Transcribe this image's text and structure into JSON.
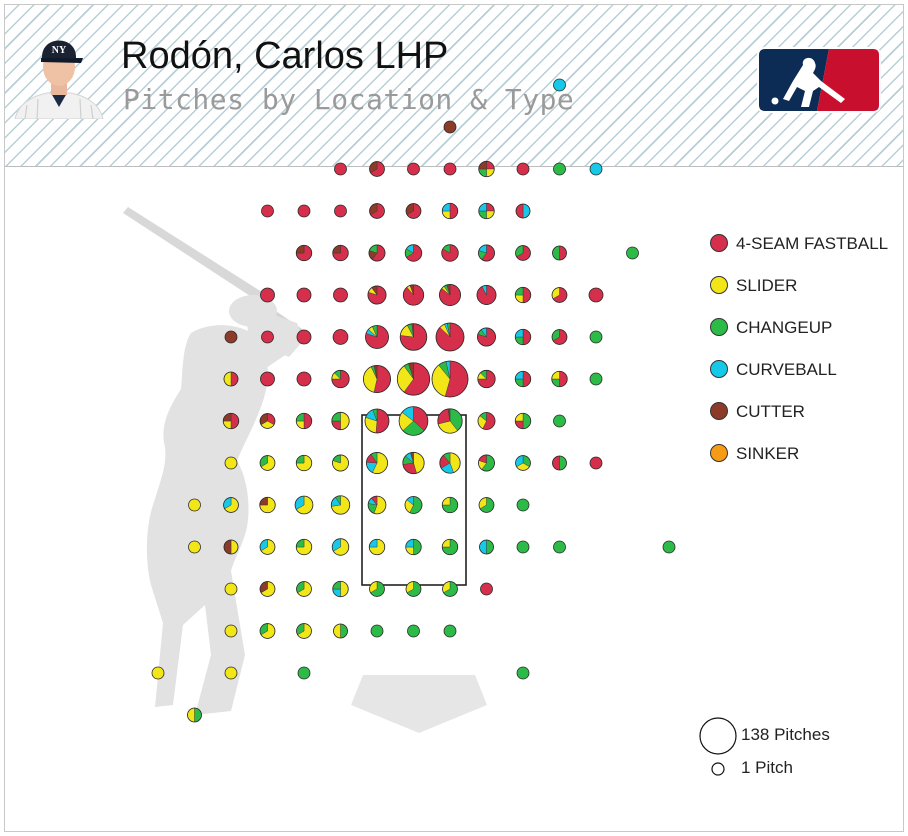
{
  "header": {
    "player_name": "Rodón, Carlos LHP",
    "subtitle": "Pitches by Location & Type",
    "cap_logo": "NY",
    "league_logo": "mlb-logo"
  },
  "colors": {
    "4-SEAM FASTBALL": "#d62f4b",
    "SLIDER": "#f2e619",
    "CHANGEUP": "#2dbb48",
    "CURVEBALL": "#17c9e8",
    "CUTTER": "#8c3b29",
    "SINKER": "#f59b16"
  },
  "size_legend": {
    "max_label": "138 Pitches",
    "min_label": "1 Pitch",
    "max_count": 138,
    "min_count": 1
  },
  "chart_data": {
    "type": "scatter",
    "title": "Pitches by Location & Type",
    "legend": [
      "4-SEAM FASTBALL",
      "SLIDER",
      "CHANGEUP",
      "CURVEBALL",
      "CUTTER",
      "SINKER"
    ],
    "legend_position": "right",
    "grid": false,
    "columns": [
      -6,
      -5,
      -4,
      -3,
      -2,
      -1,
      0,
      1,
      2,
      3,
      4,
      5,
      6,
      7,
      8,
      9
    ],
    "rows": [
      14,
      13,
      12,
      11,
      10,
      9,
      8,
      7,
      6,
      5,
      4,
      3,
      2,
      1,
      0,
      -1
    ],
    "strike_zone": {
      "col_min": -1.5,
      "col_max": 1.5,
      "row_min": 5.5,
      "row_max": 9.5
    },
    "pitches": [
      {
        "col": 4,
        "row": 14,
        "mix": {
          "CURVEBALL": 1
        }
      },
      {
        "col": 1,
        "row": 13,
        "mix": {
          "CUTTER": 1
        }
      },
      {
        "col": -2,
        "row": 12,
        "mix": {
          "4-SEAM FASTBALL": 1
        }
      },
      {
        "col": -1,
        "row": 12,
        "mix": {
          "4-SEAM FASTBALL": 2,
          "CUTTER": 1
        }
      },
      {
        "col": 0,
        "row": 12,
        "mix": {
          "4-SEAM FASTBALL": 1
        }
      },
      {
        "col": 1,
        "row": 12,
        "mix": {
          "4-SEAM FASTBALL": 1
        }
      },
      {
        "col": 2,
        "row": 12,
        "mix": {
          "4-SEAM FASTBALL": 1,
          "SLIDER": 1,
          "CHANGEUP": 1,
          "CUTTER": 1
        }
      },
      {
        "col": 3,
        "row": 12,
        "mix": {
          "4-SEAM FASTBALL": 1
        }
      },
      {
        "col": 4,
        "row": 12,
        "mix": {
          "CHANGEUP": 1
        }
      },
      {
        "col": 5,
        "row": 12,
        "mix": {
          "CURVEBALL": 1
        }
      },
      {
        "col": -4,
        "row": 11,
        "mix": {
          "4-SEAM FASTBALL": 1
        }
      },
      {
        "col": -3,
        "row": 11,
        "mix": {
          "4-SEAM FASTBALL": 1
        }
      },
      {
        "col": -2,
        "row": 11,
        "mix": {
          "4-SEAM FASTBALL": 1
        }
      },
      {
        "col": -1,
        "row": 11,
        "mix": {
          "4-SEAM FASTBALL": 2,
          "CUTTER": 1
        }
      },
      {
        "col": 0,
        "row": 11,
        "mix": {
          "4-SEAM FASTBALL": 2,
          "CUTTER": 1
        }
      },
      {
        "col": 1,
        "row": 11,
        "mix": {
          "4-SEAM FASTBALL": 2,
          "SLIDER": 1,
          "CURVEBALL": 1
        }
      },
      {
        "col": 2,
        "row": 11,
        "mix": {
          "4-SEAM FASTBALL": 1,
          "SLIDER": 1,
          "CHANGEUP": 1,
          "CURVEBALL": 1
        }
      },
      {
        "col": 3,
        "row": 11,
        "mix": {
          "CURVEBALL": 1,
          "4-SEAM FASTBALL": 1
        }
      },
      {
        "col": -3,
        "row": 10,
        "mix": {
          "4-SEAM FASTBALL": 3,
          "CUTTER": 1
        }
      },
      {
        "col": -2,
        "row": 10,
        "mix": {
          "4-SEAM FASTBALL": 3,
          "CUTTER": 1
        }
      },
      {
        "col": -1,
        "row": 10,
        "mix": {
          "4-SEAM FASTBALL": 3,
          "CUTTER": 1,
          "CHANGEUP": 1
        }
      },
      {
        "col": 0,
        "row": 10,
        "mix": {
          "4-SEAM FASTBALL": 4,
          "CHANGEUP": 1,
          "CURVEBALL": 1
        }
      },
      {
        "col": 1,
        "row": 10,
        "mix": {
          "4-SEAM FASTBALL": 5,
          "CHANGEUP": 1
        }
      },
      {
        "col": 2,
        "row": 10,
        "mix": {
          "4-SEAM FASTBALL": 3,
          "CHANGEUP": 1,
          "CURVEBALL": 1
        }
      },
      {
        "col": 3,
        "row": 10,
        "mix": {
          "4-SEAM FASTBALL": 2,
          "CHANGEUP": 1
        }
      },
      {
        "col": 4,
        "row": 10,
        "mix": {
          "4-SEAM FASTBALL": 1,
          "CHANGEUP": 1
        }
      },
      {
        "col": 6,
        "row": 10,
        "mix": {
          "CHANGEUP": 1
        }
      },
      {
        "col": -4,
        "row": 9,
        "mix": {
          "4-SEAM FASTBALL": 2
        }
      },
      {
        "col": -3,
        "row": 9,
        "mix": {
          "4-SEAM FASTBALL": 2
        }
      },
      {
        "col": -2,
        "row": 9,
        "mix": {
          "4-SEAM FASTBALL": 2
        }
      },
      {
        "col": -1,
        "row": 9,
        "mix": {
          "4-SEAM FASTBALL": 8,
          "SLIDER": 1,
          "CUTTER": 1
        }
      },
      {
        "col": 0,
        "row": 9,
        "mix": {
          "4-SEAM FASTBALL": 16,
          "SLIDER": 1,
          "CUTTER": 1
        }
      },
      {
        "col": 1,
        "row": 9,
        "mix": {
          "4-SEAM FASTBALL": 18,
          "SLIDER": 1,
          "CHANGEUP": 1,
          "CUTTER": 1
        }
      },
      {
        "col": 2,
        "row": 9,
        "mix": {
          "4-SEAM FASTBALL": 12,
          "CURVEBALL": 1
        }
      },
      {
        "col": 3,
        "row": 9,
        "mix": {
          "4-SEAM FASTBALL": 2,
          "SLIDER": 1,
          "CHANGEUP": 1
        }
      },
      {
        "col": 4,
        "row": 9,
        "mix": {
          "4-SEAM FASTBALL": 2,
          "SLIDER": 1
        }
      },
      {
        "col": 5,
        "row": 9,
        "mix": {
          "4-SEAM FASTBALL": 2
        }
      },
      {
        "col": -5,
        "row": 8,
        "mix": {
          "CUTTER": 1
        }
      },
      {
        "col": -4,
        "row": 8,
        "mix": {
          "4-SEAM FASTBALL": 1
        }
      },
      {
        "col": -3,
        "row": 8,
        "mix": {
          "4-SEAM FASTBALL": 2
        }
      },
      {
        "col": -2,
        "row": 8,
        "mix": {
          "4-SEAM FASTBALL": 3
        }
      },
      {
        "col": -1,
        "row": 8,
        "mix": {
          "4-SEAM FASTBALL": 24,
          "CURVEBALL": 2,
          "SLIDER": 2,
          "CHANGEUP": 2
        }
      },
      {
        "col": 0,
        "row": 8,
        "mix": {
          "4-SEAM FASTBALL": 40,
          "SLIDER": 8,
          "CHANGEUP": 3,
          "CUTTER": 1
        }
      },
      {
        "col": 1,
        "row": 8,
        "mix": {
          "4-SEAM FASTBALL": 54,
          "SLIDER": 4,
          "CURVEBALL": 2,
          "CHANGEUP": 2
        }
      },
      {
        "col": 2,
        "row": 8,
        "mix": {
          "4-SEAM FASTBALL": 8,
          "CHANGEUP": 1,
          "CURVEBALL": 1
        }
      },
      {
        "col": 3,
        "row": 8,
        "mix": {
          "4-SEAM FASTBALL": 2,
          "CHANGEUP": 1,
          "CURVEBALL": 1
        }
      },
      {
        "col": 4,
        "row": 8,
        "mix": {
          "4-SEAM FASTBALL": 2,
          "CHANGEUP": 1
        }
      },
      {
        "col": 5,
        "row": 8,
        "mix": {
          "CHANGEUP": 1
        }
      },
      {
        "col": -5,
        "row": 7,
        "mix": {
          "4-SEAM FASTBALL": 1,
          "SLIDER": 1
        }
      },
      {
        "col": -4,
        "row": 7,
        "mix": {
          "4-SEAM FASTBALL": 2
        }
      },
      {
        "col": -3,
        "row": 7,
        "mix": {
          "4-SEAM FASTBALL": 2
        }
      },
      {
        "col": -2,
        "row": 7,
        "mix": {
          "4-SEAM FASTBALL": 6,
          "SLIDER": 1,
          "CHANGEUP": 1
        }
      },
      {
        "col": -1,
        "row": 7,
        "mix": {
          "4-SEAM FASTBALL": 30,
          "SLIDER": 22,
          "CHANGEUP": 2,
          "CUTTER": 2
        }
      },
      {
        "col": 0,
        "row": 7,
        "mix": {
          "4-SEAM FASTBALL": 60,
          "SLIDER": 30,
          "CHANGEUP": 5,
          "CUTTER": 5
        }
      },
      {
        "col": 1,
        "row": 7,
        "mix": {
          "4-SEAM FASTBALL": 75,
          "SLIDER": 48,
          "CHANGEUP": 10,
          "CURVEBALL": 5
        }
      },
      {
        "col": 2,
        "row": 7,
        "mix": {
          "4-SEAM FASTBALL": 6,
          "SLIDER": 1,
          "CHANGEUP": 1
        }
      },
      {
        "col": 3,
        "row": 7,
        "mix": {
          "4-SEAM FASTBALL": 2,
          "CHANGEUP": 1,
          "CURVEBALL": 1
        }
      },
      {
        "col": 4,
        "row": 7,
        "mix": {
          "4-SEAM FASTBALL": 2,
          "CHANGEUP": 1,
          "SLIDER": 1
        }
      },
      {
        "col": 5,
        "row": 7,
        "mix": {
          "CHANGEUP": 1
        }
      },
      {
        "col": -5,
        "row": 6,
        "mix": {
          "4-SEAM FASTBALL": 2,
          "SLIDER": 1,
          "CUTTER": 1
        }
      },
      {
        "col": -4,
        "row": 6,
        "mix": {
          "4-SEAM FASTBALL": 1,
          "SLIDER": 1,
          "CUTTER": 1
        }
      },
      {
        "col": -3,
        "row": 6,
        "mix": {
          "4-SEAM FASTBALL": 2,
          "SLIDER": 1,
          "CHANGEUP": 1
        }
      },
      {
        "col": -2,
        "row": 6,
        "mix": {
          "SLIDER": 4,
          "4-SEAM FASTBALL": 2,
          "CHANGEUP": 2
        }
      },
      {
        "col": -1,
        "row": 6,
        "mix": {
          "4-SEAM FASTBALL": 18,
          "SLIDER": 10,
          "CURVEBALL": 5,
          "CHANGEUP": 2
        }
      },
      {
        "col": 0,
        "row": 6,
        "mix": {
          "4-SEAM FASTBALL": 25,
          "CHANGEUP": 18,
          "SLIDER": 15,
          "CURVEBALL": 10
        }
      },
      {
        "col": 1,
        "row": 6,
        "mix": {
          "CHANGEUP": 15,
          "SLIDER": 12,
          "4-SEAM FASTBALL": 10,
          "CUTTER": 1
        }
      },
      {
        "col": 2,
        "row": 6,
        "mix": {
          "4-SEAM FASTBALL": 4,
          "SLIDER": 2,
          "CHANGEUP": 1
        }
      },
      {
        "col": 3,
        "row": 6,
        "mix": {
          "CHANGEUP": 2,
          "4-SEAM FASTBALL": 1,
          "SLIDER": 1
        }
      },
      {
        "col": 4,
        "row": 6,
        "mix": {
          "CHANGEUP": 1
        }
      },
      {
        "col": -5,
        "row": 5,
        "mix": {
          "SLIDER": 1
        }
      },
      {
        "col": -4,
        "row": 5,
        "mix": {
          "SLIDER": 2,
          "CHANGEUP": 1
        }
      },
      {
        "col": -3,
        "row": 5,
        "mix": {
          "SLIDER": 3,
          "CHANGEUP": 1
        }
      },
      {
        "col": -2,
        "row": 5,
        "mix": {
          "SLIDER": 4,
          "CHANGEUP": 1
        }
      },
      {
        "col": -1,
        "row": 5,
        "mix": {
          "SLIDER": 12,
          "CURVEBALL": 4,
          "4-SEAM FASTBALL": 3,
          "CHANGEUP": 2
        }
      },
      {
        "col": 0,
        "row": 5,
        "mix": {
          "SLIDER": 10,
          "4-SEAM FASTBALL": 6,
          "CHANGEUP": 3,
          "CURVEBALL": 2,
          "CUTTER": 1
        }
      },
      {
        "col": 1,
        "row": 5,
        "mix": {
          "SLIDER": 8,
          "CURVEBALL": 4,
          "4-SEAM FASTBALL": 4,
          "CHANGEUP": 2
        }
      },
      {
        "col": 2,
        "row": 5,
        "mix": {
          "CHANGEUP": 3,
          "SLIDER": 1,
          "4-SEAM FASTBALL": 1
        }
      },
      {
        "col": 3,
        "row": 5,
        "mix": {
          "CHANGEUP": 1,
          "SLIDER": 1,
          "CURVEBALL": 1
        }
      },
      {
        "col": 4,
        "row": 5,
        "mix": {
          "CHANGEUP": 1,
          "4-SEAM FASTBALL": 1
        }
      },
      {
        "col": 5,
        "row": 5,
        "mix": {
          "4-SEAM FASTBALL": 1
        }
      },
      {
        "col": -6,
        "row": 4,
        "mix": {
          "SLIDER": 1
        }
      },
      {
        "col": -5,
        "row": 4,
        "mix": {
          "SLIDER": 2,
          "CURVEBALL": 1
        }
      },
      {
        "col": -4,
        "row": 4,
        "mix": {
          "SLIDER": 3,
          "CUTTER": 1
        }
      },
      {
        "col": -3,
        "row": 4,
        "mix": {
          "SLIDER": 6,
          "CURVEBALL": 3
        }
      },
      {
        "col": -2,
        "row": 4,
        "mix": {
          "SLIDER": 8,
          "CURVEBALL": 2,
          "CHANGEUP": 1
        }
      },
      {
        "col": -1,
        "row": 4,
        "mix": {
          "SLIDER": 5,
          "CHANGEUP": 2,
          "CURVEBALL": 1,
          "4-SEAM FASTBALL": 1
        }
      },
      {
        "col": 0,
        "row": 4,
        "mix": {
          "CHANGEUP": 4,
          "SLIDER": 2,
          "CURVEBALL": 1
        }
      },
      {
        "col": 1,
        "row": 4,
        "mix": {
          "CHANGEUP": 3,
          "SLIDER": 1
        }
      },
      {
        "col": 2,
        "row": 4,
        "mix": {
          "CHANGEUP": 2,
          "SLIDER": 1
        }
      },
      {
        "col": 3,
        "row": 4,
        "mix": {
          "CHANGEUP": 1
        }
      },
      {
        "col": -6,
        "row": 3,
        "mix": {
          "SLIDER": 1
        }
      },
      {
        "col": -5,
        "row": 3,
        "mix": {
          "SLIDER": 1,
          "CUTTER": 1
        }
      },
      {
        "col": -4,
        "row": 3,
        "mix": {
          "SLIDER": 2,
          "CURVEBALL": 1
        }
      },
      {
        "col": -3,
        "row": 3,
        "mix": {
          "SLIDER": 3,
          "CHANGEUP": 1
        }
      },
      {
        "col": -2,
        "row": 3,
        "mix": {
          "SLIDER": 4,
          "CURVEBALL": 2
        }
      },
      {
        "col": -1,
        "row": 3,
        "mix": {
          "SLIDER": 3,
          "CURVEBALL": 1
        }
      },
      {
        "col": 0,
        "row": 3,
        "mix": {
          "CHANGEUP": 2,
          "SLIDER": 1,
          "CURVEBALL": 1
        }
      },
      {
        "col": 1,
        "row": 3,
        "mix": {
          "CHANGEUP": 3,
          "SLIDER": 1
        }
      },
      {
        "col": 2,
        "row": 3,
        "mix": {
          "CHANGEUP": 1,
          "CURVEBALL": 1
        }
      },
      {
        "col": 3,
        "row": 3,
        "mix": {
          "CHANGEUP": 1
        }
      },
      {
        "col": 4,
        "row": 3,
        "mix": {
          "CHANGEUP": 1
        }
      },
      {
        "col": 7,
        "row": 3,
        "mix": {
          "CHANGEUP": 1
        }
      },
      {
        "col": -5,
        "row": 2,
        "mix": {
          "SLIDER": 1
        }
      },
      {
        "col": -4,
        "row": 2,
        "mix": {
          "SLIDER": 2,
          "CUTTER": 1
        }
      },
      {
        "col": -3,
        "row": 2,
        "mix": {
          "SLIDER": 2,
          "CHANGEUP": 1
        }
      },
      {
        "col": -2,
        "row": 2,
        "mix": {
          "SLIDER": 2,
          "CURVEBALL": 1,
          "CHANGEUP": 1
        }
      },
      {
        "col": -1,
        "row": 2,
        "mix": {
          "CHANGEUP": 2,
          "SLIDER": 1
        }
      },
      {
        "col": 0,
        "row": 2,
        "mix": {
          "CHANGEUP": 2,
          "SLIDER": 1
        }
      },
      {
        "col": 1,
        "row": 2,
        "mix": {
          "CHANGEUP": 2,
          "SLIDER": 1
        }
      },
      {
        "col": 2,
        "row": 2,
        "mix": {
          "4-SEAM FASTBALL": 1
        }
      },
      {
        "col": -5,
        "row": 1,
        "mix": {
          "SLIDER": 1
        }
      },
      {
        "col": -4,
        "row": 1,
        "mix": {
          "SLIDER": 2,
          "CHANGEUP": 1
        }
      },
      {
        "col": -3,
        "row": 1,
        "mix": {
          "SLIDER": 2,
          "CHANGEUP": 1
        }
      },
      {
        "col": -2,
        "row": 1,
        "mix": {
          "CHANGEUP": 1,
          "SLIDER": 1
        }
      },
      {
        "col": -1,
        "row": 1,
        "mix": {
          "CHANGEUP": 1
        }
      },
      {
        "col": 0,
        "row": 1,
        "mix": {
          "CHANGEUP": 1
        }
      },
      {
        "col": 1,
        "row": 1,
        "mix": {
          "CHANGEUP": 1
        }
      },
      {
        "col": -7,
        "row": 0,
        "mix": {
          "SLIDER": 1
        }
      },
      {
        "col": -5,
        "row": 0,
        "mix": {
          "SLIDER": 1
        }
      },
      {
        "col": -3,
        "row": 0,
        "mix": {
          "CHANGEUP": 1
        }
      },
      {
        "col": 3,
        "row": 0,
        "mix": {
          "CHANGEUP": 1
        }
      },
      {
        "col": -6,
        "row": -1,
        "mix": {
          "CHANGEUP": 1,
          "SLIDER": 1
        }
      }
    ]
  }
}
